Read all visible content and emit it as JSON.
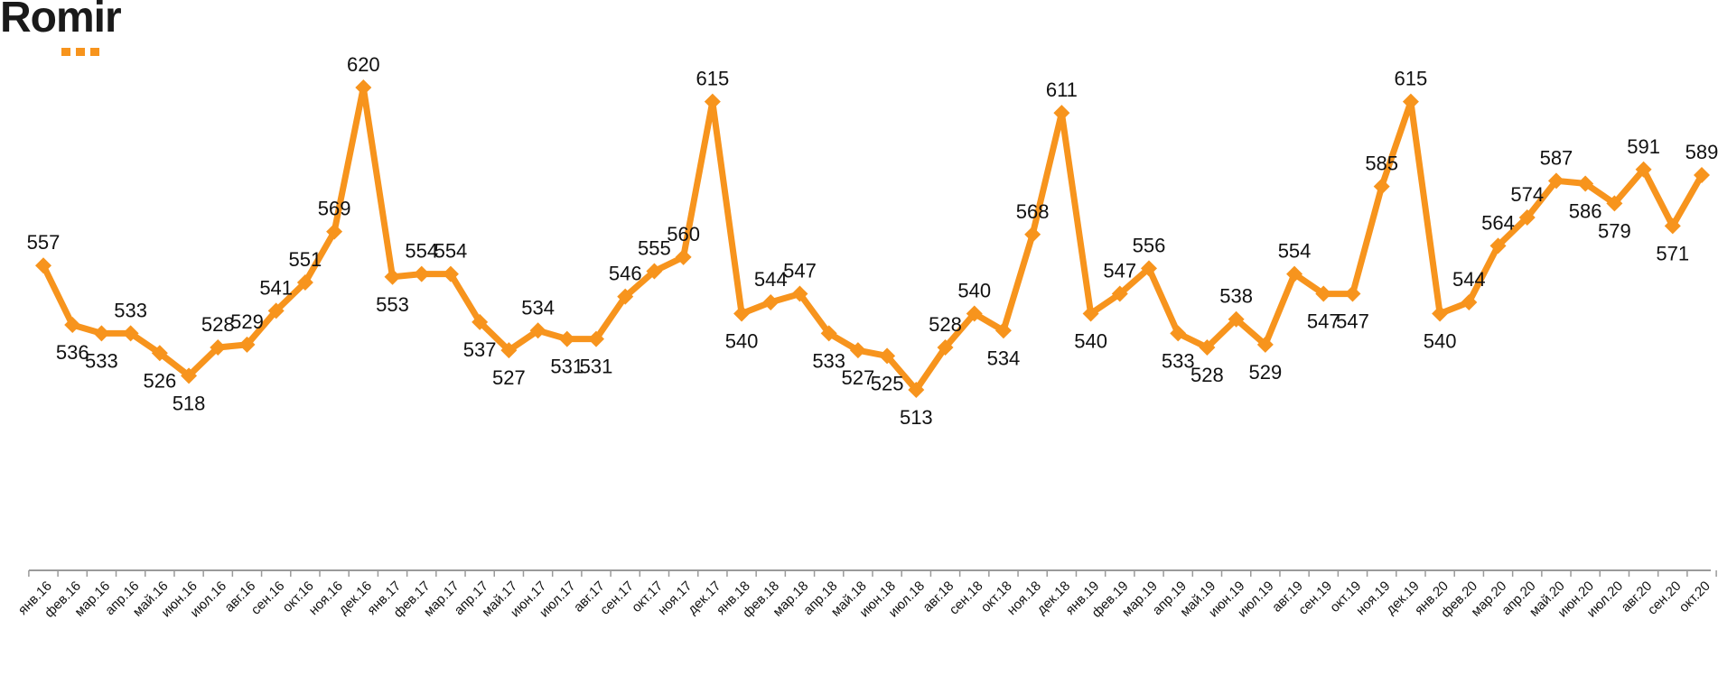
{
  "logo": {
    "text": "Romir",
    "accent_color": "#f7941d"
  },
  "colors": {
    "line": "#f7941d",
    "axis": "#9a9a9a",
    "text": "#111111"
  },
  "chart_data": {
    "type": "line",
    "title": "",
    "xlabel": "",
    "ylabel": "",
    "marker": "diamond",
    "grid": false,
    "ylim": [
      480,
      630
    ],
    "categories": [
      "янв.16",
      "фев.16",
      "мар.16",
      "апр.16",
      "май.16",
      "июн.16",
      "июл.16",
      "авг.16",
      "сен.16",
      "окт.16",
      "ноя.16",
      "дек.16",
      "янв.17",
      "фев.17",
      "мар.17",
      "апр.17",
      "май.17",
      "июн.17",
      "июл.17",
      "авг.17",
      "сен.17",
      "окт.17",
      "ноя.17",
      "дек.17",
      "янв.18",
      "фев.18",
      "мар.18",
      "апр.18",
      "май.18",
      "июн.18",
      "июл.18",
      "авг.18",
      "сен.18",
      "окт.18",
      "ноя.18",
      "дек.18",
      "янв.19",
      "фев.19",
      "мар.19",
      "апр.19",
      "май.19",
      "июн.19",
      "июл.19",
      "авг.19",
      "сен.19",
      "окт.19",
      "ноя.19",
      "дек.19",
      "янв.20",
      "фев.20",
      "мар.20",
      "апр.20",
      "май.20",
      "июн.20",
      "июл.20",
      "авг.20",
      "сен.20",
      "окт.20"
    ],
    "values": [
      557,
      536,
      533,
      533,
      526,
      518,
      528,
      529,
      541,
      551,
      569,
      620,
      553,
      554,
      554,
      537,
      527,
      534,
      531,
      531,
      546,
      555,
      560,
      615,
      540,
      544,
      547,
      533,
      527,
      525,
      513,
      528,
      540,
      534,
      568,
      611,
      540,
      547,
      556,
      533,
      528,
      538,
      529,
      554,
      547,
      547,
      585,
      615,
      540,
      544,
      564,
      574,
      587,
      586,
      579,
      591,
      571,
      589
    ],
    "labels": [
      "557",
      "536",
      "533",
      "533",
      "526",
      "518",
      "528",
      "529",
      "541",
      "551",
      "569",
      "620",
      "553",
      "554",
      "554",
      "537",
      "527",
      "534",
      "531",
      "531",
      "546",
      "555",
      "560",
      "615",
      "540",
      "544",
      "547",
      "533",
      "527",
      "525",
      "513",
      "528",
      "540",
      "534",
      "568",
      "611",
      "540",
      "547",
      "556",
      "533",
      "528",
      "538",
      "529",
      "554",
      "547",
      "547",
      "585",
      "615",
      "540",
      "544",
      "564",
      "574",
      "587",
      "586",
      "579",
      "591",
      "571",
      "589"
    ]
  }
}
